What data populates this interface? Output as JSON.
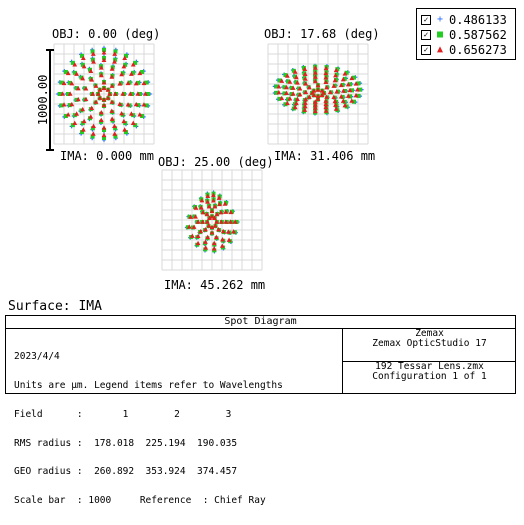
{
  "chart_data": {
    "type": "scatter",
    "title": "Spot Diagram",
    "surface_label": "Surface: IMA",
    "scale_label": "1000.00",
    "legend": [
      {
        "value": "0.486133",
        "symbol": "+",
        "color": "#2b6cff"
      },
      {
        "value": "0.587562",
        "symbol": "■",
        "color": "#22cc22"
      },
      {
        "value": "0.656273",
        "symbol": "▲",
        "color": "#e02020"
      }
    ],
    "fields": [
      {
        "obj": "OBJ: 0.00 (deg)",
        "ima": "IMA: 0.000 mm",
        "shape": "round",
        "rings": [
          6,
          12,
          20,
          28,
          36,
          44
        ],
        "scale_y": 1.0
      },
      {
        "obj": "OBJ: 17.68 (deg)",
        "ima": "IMA: 31.406 mm",
        "shape": "elliptic",
        "rings": [
          6,
          13,
          20,
          27,
          34,
          42
        ],
        "scale_y": 0.55
      },
      {
        "obj": "OBJ: 25.00 (deg)",
        "ima": "IMA: 45.262 mm",
        "shape": "drop",
        "rings": [
          6,
          12,
          18,
          24,
          30
        ],
        "scale_y": 1.0
      }
    ]
  },
  "info": {
    "title": "Spot Diagram",
    "left_lines": [
      "2023/4/4",
      "Units are µm. Legend items refer to Wavelengths",
      "Field      :       1        2        3",
      "RMS radius :  178.018  225.194  190.035",
      "GEO radius :  260.892  353.924  374.457",
      "Scale bar  : 1000     Reference  : Chief Ray"
    ],
    "right_top": [
      "Zemax",
      "Zemax OpticStudio 17"
    ],
    "right_bottom": [
      "192 Tessar Lens.zmx",
      "Configuration 1 of 1"
    ]
  }
}
